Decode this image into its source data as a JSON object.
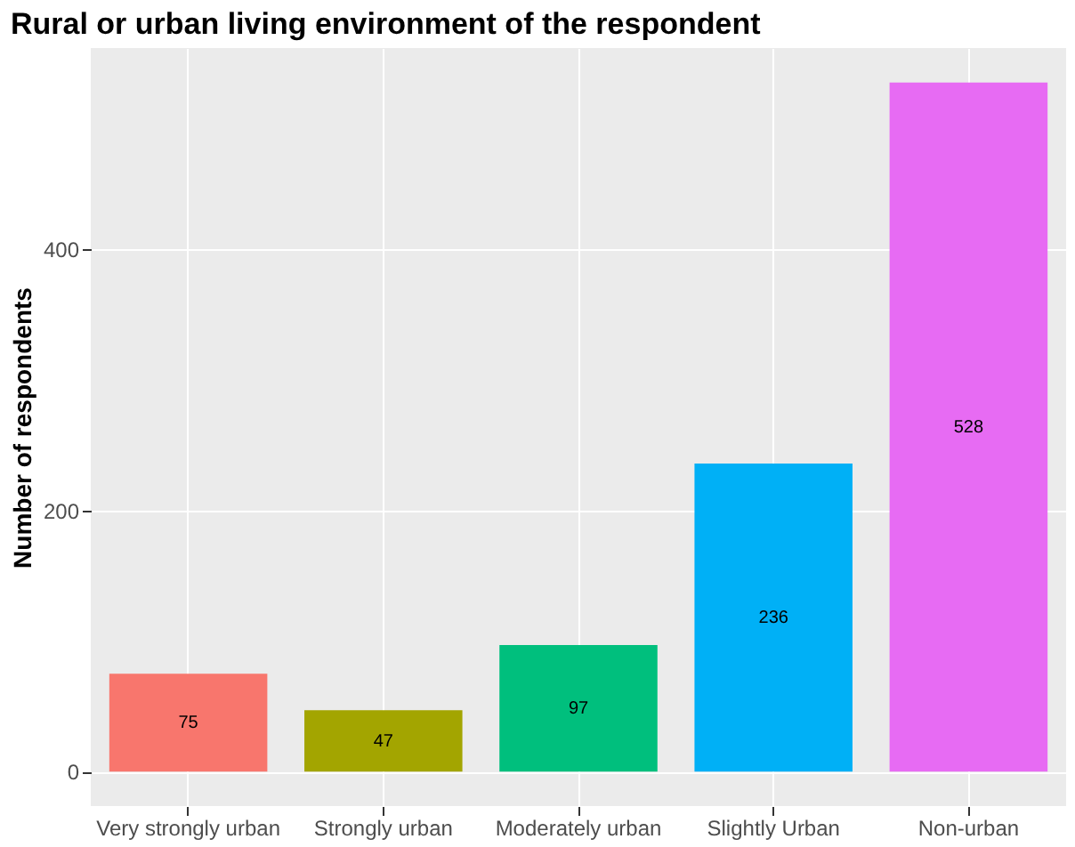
{
  "chart_data": {
    "type": "bar",
    "title": "Rural or urban living environment of the respondent",
    "ylabel": "Number of respondents",
    "categories": [
      "Very strongly urban",
      "Strongly urban",
      "Moderately urban",
      "Slightly Urban",
      "Non-urban"
    ],
    "values": [
      75,
      47,
      97,
      236,
      528
    ],
    "colors": [
      "#f8766d",
      "#a3a500",
      "#00bf7d",
      "#00b0f6",
      "#e76bf3"
    ],
    "ylim": [
      -26.4,
      554.4
    ],
    "yticks": [
      0,
      200,
      400
    ],
    "grid": true,
    "data_labels": true
  }
}
